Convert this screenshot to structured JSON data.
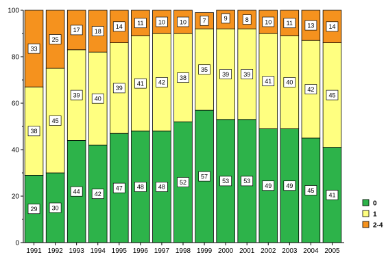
{
  "chart_data": {
    "type": "bar",
    "stacked": true,
    "categories": [
      "1991",
      "1992",
      "1993",
      "1994",
      "1995",
      "1996",
      "1997",
      "1998",
      "1999",
      "2000",
      "2001",
      "2002",
      "2003",
      "2004",
      "2005"
    ],
    "series": [
      {
        "name": "0",
        "color": "#2db34a",
        "values": [
          29,
          30,
          44,
          42,
          47,
          48,
          48,
          52,
          57,
          53,
          53,
          49,
          49,
          45,
          41
        ]
      },
      {
        "name": "1",
        "color": "#ffff80",
        "values": [
          38,
          45,
          39,
          40,
          39,
          41,
          42,
          38,
          35,
          39,
          39,
          41,
          40,
          42,
          45
        ]
      },
      {
        "name": "2-4",
        "color": "#f5921e",
        "values": [
          33,
          25,
          17,
          18,
          14,
          11,
          10,
          10,
          7,
          9,
          8,
          10,
          11,
          13,
          14
        ]
      }
    ],
    "ylim": [
      0,
      100
    ],
    "yticks": [
      "0",
      "20",
      "40",
      "60",
      "80",
      "100"
    ],
    "legend_position": "right-bottom",
    "grid": false
  }
}
